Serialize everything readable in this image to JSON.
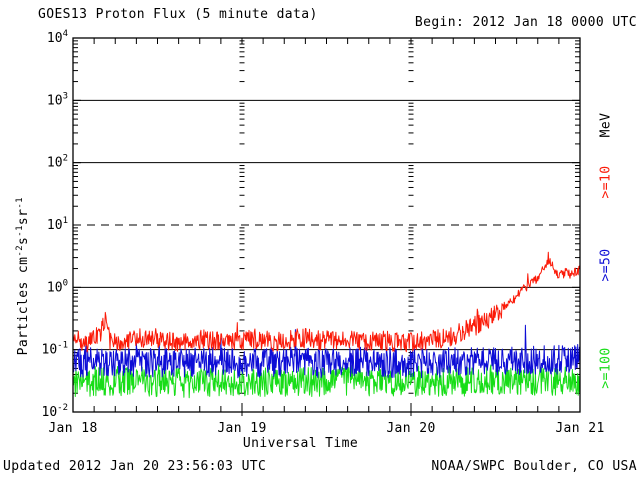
{
  "header": {
    "title": "GOES13 Proton Flux (5 minute data)",
    "begin_label": "Begin: 2012 Jan 18 0000 UTC"
  },
  "footer": {
    "updated": "Updated 2012 Jan 20 23:56:03 UTC",
    "source": "NOAA/SWPC Boulder, CO USA"
  },
  "chart_data": {
    "type": "line",
    "title": "GOES13 Proton Flux (5 minute data)",
    "begin": "2012 Jan 18 0000 UTC",
    "updated": "2012 Jan 20 23:56:03 UTC",
    "x_axis": {
      "label": "Universal Time",
      "tick_labels": [
        "Jan 18",
        "Jan 19",
        "Jan 20",
        "Jan 21"
      ],
      "range_hours": [
        0,
        72
      ],
      "minor_tick_hours": 3
    },
    "y_axis": {
      "label_segments": [
        {
          "text": "Particles  cm"
        },
        {
          "sup": "-2"
        },
        {
          "text": "s"
        },
        {
          "sup": "-1"
        },
        {
          "text": "sr"
        },
        {
          "sup": "-1"
        }
      ],
      "scale": "log",
      "ylim": [
        0.01,
        10000
      ],
      "tick_base": "10",
      "tick_exponents": [
        4,
        3,
        2,
        1,
        0,
        -1,
        -2
      ]
    },
    "gridlines": {
      "solid_at": [
        1000,
        100,
        1,
        0.1
      ],
      "dashed_at": [
        10
      ]
    },
    "legend": {
      "unit": "MeV",
      "entries": [
        {
          "label": ">=10",
          "color": "#fb1a08"
        },
        {
          "label": ">=50",
          "color": "#0d0dd6"
        },
        {
          "label": ">=100",
          "color": "#17dd17"
        }
      ]
    },
    "sample_minutes": 5,
    "series": [
      {
        "name": ">=100 MeV protons",
        "color": "#17dd17",
        "noise_log10": 0.24,
        "spike_prob": 0.02,
        "spike_log10": 0.28,
        "control_points": [
          [
            0,
            0.03
          ],
          [
            8,
            0.032
          ],
          [
            16,
            0.029
          ],
          [
            24,
            0.031
          ],
          [
            32,
            0.03
          ],
          [
            40,
            0.032
          ],
          [
            48,
            0.03
          ],
          [
            56,
            0.031
          ],
          [
            64,
            0.032
          ],
          [
            72,
            0.031
          ]
        ]
      },
      {
        "name": ">=50 MeV protons",
        "color": "#0d0dd6",
        "noise_log10": 0.24,
        "spike_prob": 0.03,
        "spike_log10": 0.35,
        "control_points": [
          [
            0,
            0.06
          ],
          [
            6,
            0.066
          ],
          [
            12,
            0.06
          ],
          [
            18,
            0.064
          ],
          [
            24,
            0.059
          ],
          [
            30,
            0.065
          ],
          [
            36,
            0.061
          ],
          [
            42,
            0.064
          ],
          [
            48,
            0.06
          ],
          [
            54,
            0.063
          ],
          [
            60,
            0.065
          ],
          [
            66,
            0.068
          ],
          [
            72,
            0.07
          ]
        ]
      },
      {
        "name": ">=10 MeV protons",
        "color": "#fb1a08",
        "noise_log10": 0.16,
        "spike_prob": 0.02,
        "spike_log10": 0.3,
        "control_points": [
          [
            0,
            0.15
          ],
          [
            2,
            0.13
          ],
          [
            4,
            0.2
          ],
          [
            4.6,
            0.3
          ],
          [
            5.2,
            0.14
          ],
          [
            8,
            0.14
          ],
          [
            11,
            0.16
          ],
          [
            14,
            0.13
          ],
          [
            17,
            0.15
          ],
          [
            20,
            0.14
          ],
          [
            23,
            0.13
          ],
          [
            26,
            0.15
          ],
          [
            29,
            0.13
          ],
          [
            32,
            0.16
          ],
          [
            35,
            0.14
          ],
          [
            38,
            0.15
          ],
          [
            41,
            0.13
          ],
          [
            44,
            0.14
          ],
          [
            47,
            0.13
          ],
          [
            50,
            0.14
          ],
          [
            52,
            0.15
          ],
          [
            54,
            0.17
          ],
          [
            56,
            0.21
          ],
          [
            58,
            0.27
          ],
          [
            59.5,
            0.33
          ],
          [
            61,
            0.45
          ],
          [
            62.5,
            0.62
          ],
          [
            63.5,
            0.85
          ],
          [
            64.5,
            1.05
          ],
          [
            65.5,
            1.25
          ],
          [
            66.5,
            1.7
          ],
          [
            67.2,
            2.4
          ],
          [
            67.6,
            2.8
          ],
          [
            68.1,
            2.3
          ],
          [
            68.5,
            1.7
          ],
          [
            69.2,
            1.55
          ],
          [
            70,
            1.75
          ],
          [
            70.7,
            1.6
          ],
          [
            71.4,
            1.75
          ],
          [
            72,
            1.9
          ]
        ]
      }
    ]
  }
}
